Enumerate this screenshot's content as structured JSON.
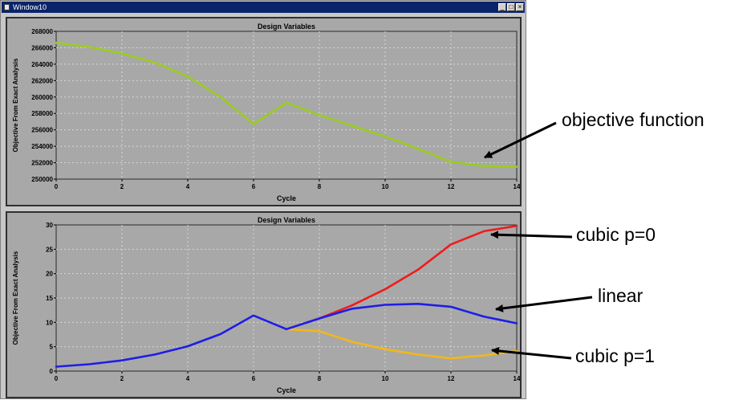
{
  "window": {
    "title": "Window10",
    "buttons": {
      "minimize": "_",
      "maximize": "□",
      "close": "×"
    }
  },
  "colors": {
    "panel_bg": "#a8a8a8",
    "grid": "#d6d6d6",
    "objective": "#9ccc1f",
    "cubic_p0": "#ee1c1c",
    "linear": "#1e1ee6",
    "cubic_p1": "#f2b81a"
  },
  "annotations": {
    "objective": "objective function",
    "cubic_p0": "cubic p=0",
    "linear": "linear",
    "cubic_p1": "cubic p=1"
  },
  "chart_data": [
    {
      "type": "line",
      "title": "Design Variables",
      "xlabel": "Cycle",
      "ylabel": "Objective From Exact Analysis",
      "xlim": [
        0,
        14
      ],
      "ylim": [
        250000,
        268000
      ],
      "xticks": [
        0,
        2,
        4,
        6,
        8,
        10,
        12,
        14
      ],
      "yticks": [
        250000,
        252000,
        254000,
        256000,
        258000,
        260000,
        262000,
        264000,
        266000,
        268000
      ],
      "grid": true,
      "series": [
        {
          "color_key": "objective",
          "x": [
            0,
            1,
            2,
            3,
            4,
            5,
            6,
            7,
            8,
            9,
            10,
            11,
            12,
            13,
            14
          ],
          "values": [
            266600,
            266100,
            265300,
            264200,
            262500,
            260000,
            256700,
            259300,
            257800,
            256500,
            255200,
            253700,
            252100,
            251600,
            251500
          ]
        }
      ]
    },
    {
      "type": "line",
      "title": "Design Variables",
      "xlabel": "Cycle",
      "ylabel": "Objective From Exact Analysis",
      "xlim": [
        0,
        14
      ],
      "ylim": [
        0,
        30
      ],
      "xticks": [
        0,
        2,
        4,
        6,
        8,
        10,
        12,
        14
      ],
      "yticks": [
        0,
        5,
        10,
        15,
        20,
        25,
        30
      ],
      "grid": true,
      "series": [
        {
          "color_key": "cubic_p1",
          "x": [
            7,
            8,
            9,
            10,
            11,
            12,
            13,
            14
          ],
          "values": [
            8.6,
            8.2,
            6.0,
            4.5,
            3.4,
            2.6,
            3.2,
            4.1
          ]
        },
        {
          "color_key": "cubic_p0",
          "x": [
            7,
            8,
            9,
            10,
            11,
            12,
            13,
            14
          ],
          "values": [
            8.6,
            10.8,
            13.5,
            16.8,
            20.8,
            26.0,
            28.7,
            29.8
          ]
        },
        {
          "color_key": "linear",
          "x": [
            0,
            1,
            2,
            3,
            4,
            5,
            6,
            7,
            8,
            9,
            10,
            11,
            12,
            13,
            14
          ],
          "values": [
            0.9,
            1.4,
            2.2,
            3.4,
            5.1,
            7.6,
            11.4,
            8.6,
            10.8,
            12.8,
            13.6,
            13.8,
            13.2,
            11.2,
            9.8
          ]
        }
      ]
    }
  ]
}
